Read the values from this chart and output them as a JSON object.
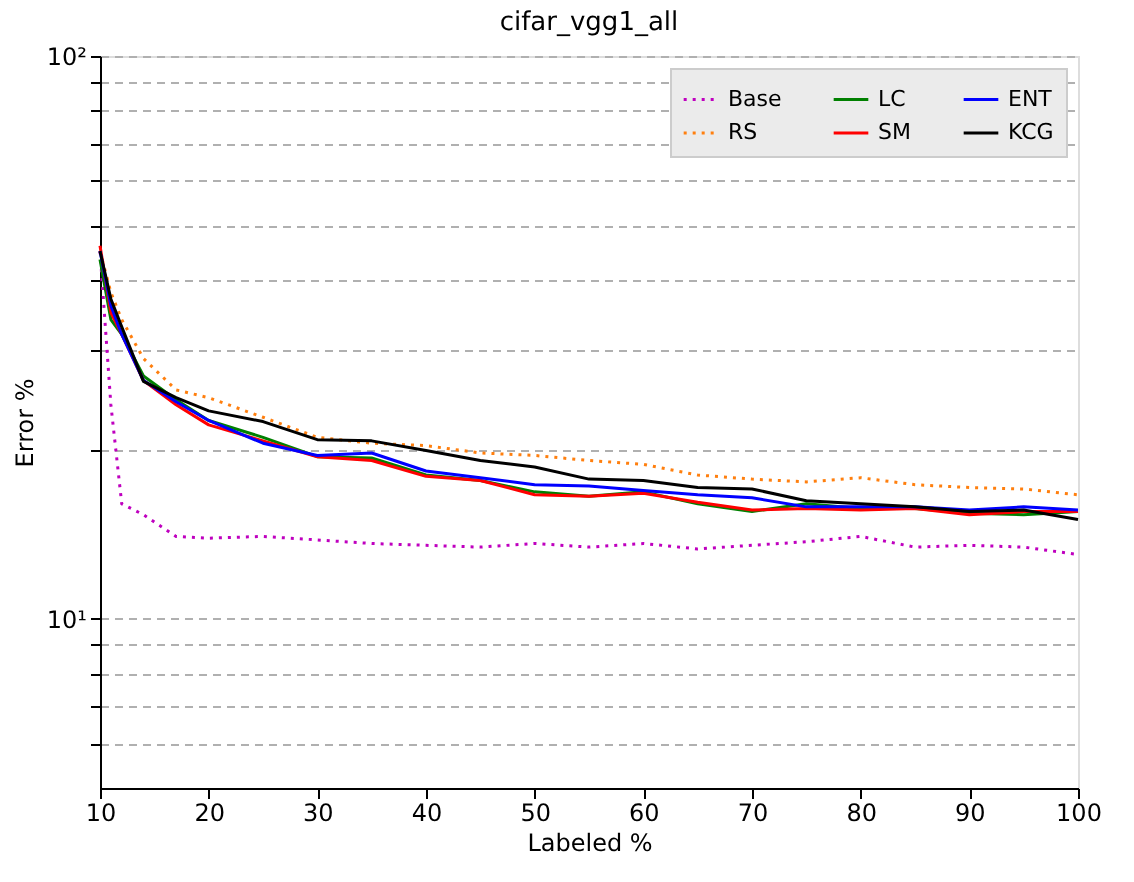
{
  "chart_data": {
    "type": "line",
    "title": "cifar_vgg1_all",
    "xlabel": "Labeled %",
    "ylabel": "Error %",
    "x": [
      10,
      11,
      12,
      14,
      17,
      20,
      25,
      30,
      35,
      40,
      45,
      50,
      55,
      60,
      65,
      70,
      75,
      80,
      85,
      90,
      95,
      100
    ],
    "series": [
      {
        "name": "Base",
        "color": "#bf00bf",
        "line_style": "dotted",
        "values": [
          45,
          24,
          16,
          15.3,
          14,
          13.9,
          14.0,
          13.8,
          13.6,
          13.5,
          13.4,
          13.6,
          13.4,
          13.6,
          13.3,
          13.5,
          13.7,
          14.0,
          13.4,
          13.5,
          13.4,
          13.0
        ]
      },
      {
        "name": "RS",
        "color": "#ff7f0e",
        "line_style": "dotted",
        "values": [
          45,
          38,
          34,
          29,
          25.5,
          24.7,
          22.8,
          21.0,
          20.5,
          20.3,
          19.7,
          19.5,
          19.1,
          18.8,
          18.0,
          17.7,
          17.5,
          17.8,
          17.3,
          17.1,
          17.0,
          16.6
        ]
      },
      {
        "name": "LC",
        "color": "#008000",
        "line_style": "solid",
        "values": [
          43.5,
          34,
          32,
          27,
          24.5,
          22.5,
          21.0,
          19.4,
          19.3,
          18.0,
          17.6,
          16.8,
          16.5,
          16.8,
          16.0,
          15.5,
          16.0,
          15.7,
          15.7,
          15.4,
          15.3,
          15.5
        ]
      },
      {
        "name": "SM",
        "color": "#ff0000",
        "line_style": "solid",
        "values": [
          46,
          35,
          32,
          26.5,
          24,
          22.1,
          20.7,
          19.4,
          19.1,
          17.9,
          17.6,
          16.6,
          16.5,
          16.7,
          16.1,
          15.6,
          15.7,
          15.6,
          15.7,
          15.3,
          15.5,
          15.5
        ]
      },
      {
        "name": "ENT",
        "color": "#0000ff",
        "line_style": "solid",
        "values": [
          45,
          36,
          32,
          26.5,
          24.3,
          22.5,
          20.5,
          19.5,
          19.7,
          18.3,
          17.8,
          17.3,
          17.2,
          16.9,
          16.6,
          16.4,
          15.8,
          15.8,
          15.8,
          15.6,
          15.8,
          15.6
        ]
      },
      {
        "name": "KCG",
        "color": "#000000",
        "line_style": "solid",
        "values": [
          45,
          37,
          33,
          26.4,
          24.7,
          23.4,
          22.4,
          20.8,
          20.7,
          19.9,
          19.1,
          18.6,
          17.7,
          17.6,
          17.1,
          17.0,
          16.2,
          16.0,
          15.8,
          15.5,
          15.6,
          15.0
        ]
      }
    ],
    "xlim": [
      10,
      100
    ],
    "xticks": [
      10,
      20,
      30,
      40,
      50,
      60,
      70,
      80,
      90,
      100
    ],
    "ylim": [
      5,
      100
    ],
    "log": true,
    "yticks": [
      {
        "value": 6,
        "label": null
      },
      {
        "value": 7,
        "label": null
      },
      {
        "value": 8,
        "label": null
      },
      {
        "value": 9,
        "label": null
      },
      {
        "value": 10,
        "label": "10¹"
      },
      {
        "value": 20,
        "label": null
      },
      {
        "value": 30,
        "label": null
      },
      {
        "value": 40,
        "label": null
      },
      {
        "value": 50,
        "label": null
      },
      {
        "value": 60,
        "label": null
      },
      {
        "value": 70,
        "label": null
      },
      {
        "value": 80,
        "label": null
      },
      {
        "value": 90,
        "label": null
      },
      {
        "value": 100,
        "label": "10²"
      }
    ],
    "grid": "y",
    "legend": "top right",
    "marker": "none"
  }
}
